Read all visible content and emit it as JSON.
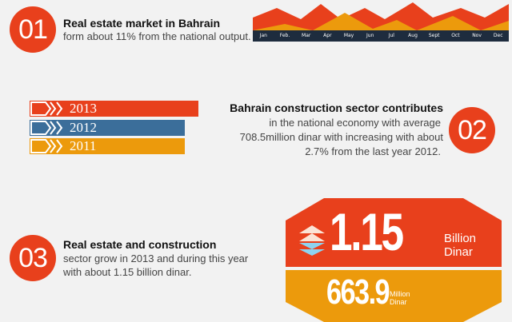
{
  "section1": {
    "number": "01",
    "title": "Real estate market in Bahrain",
    "text": "form about 11% from the national output."
  },
  "months": [
    "Jan",
    "Feb.",
    "Mar",
    "Apr",
    "May",
    "Jun",
    "Jul",
    "Aug",
    "Sept",
    "Oct",
    "Nov",
    "Dec"
  ],
  "years": [
    {
      "label": "2013",
      "color": "#e8401c"
    },
    {
      "label": "2012",
      "color": "#3b6e9a"
    },
    {
      "label": "2011",
      "color": "#ec9a0c"
    }
  ],
  "section2": {
    "number": "02",
    "title": "Bahrain construction sector contributes",
    "line1": "in the national economy with average",
    "line2": "708.5million dinar with increasing with about",
    "line3": "2.7% from the last year 2012."
  },
  "section3": {
    "number": "03",
    "title": "Real estate and construction",
    "line1": "sector grow in 2013 and during this year",
    "line2": "with about 1.15 billion dinar."
  },
  "figure_big": {
    "value": "1.15",
    "unit_line1": "Billion",
    "unit_line2": "Dinar"
  },
  "figure_small": {
    "value": "663.9",
    "unit_line1": "Million",
    "unit_line2": "Dinar"
  },
  "colors": {
    "red": "#e8401c",
    "orange": "#ec9a0c",
    "blue": "#3b6e9a",
    "navy": "#1e2c3e",
    "light_blue": "#8ed3f0"
  }
}
